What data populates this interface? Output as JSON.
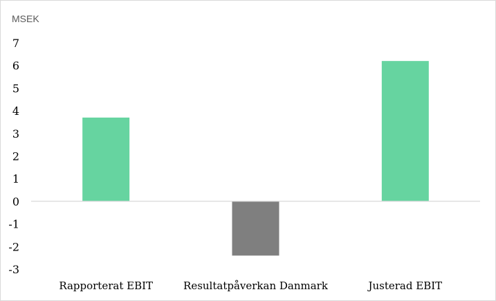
{
  "chart_data": {
    "type": "bar",
    "title": "",
    "unit_label": "MSEK",
    "xlabel": "",
    "ylabel": "",
    "categories": [
      "Rapporterat EBIT",
      "Resultatpåverkan Danmark",
      "Justerad EBIT"
    ],
    "values": [
      3.7,
      -2.4,
      6.2
    ],
    "bar_colors": [
      "#66d4a0",
      "#7f7f7f",
      "#66d4a0"
    ],
    "ylim": [
      -3,
      7
    ],
    "yticks": [
      7,
      6,
      5,
      4,
      3,
      2,
      1,
      0,
      -1,
      -2,
      -3
    ],
    "grid": false,
    "legend": "none"
  }
}
